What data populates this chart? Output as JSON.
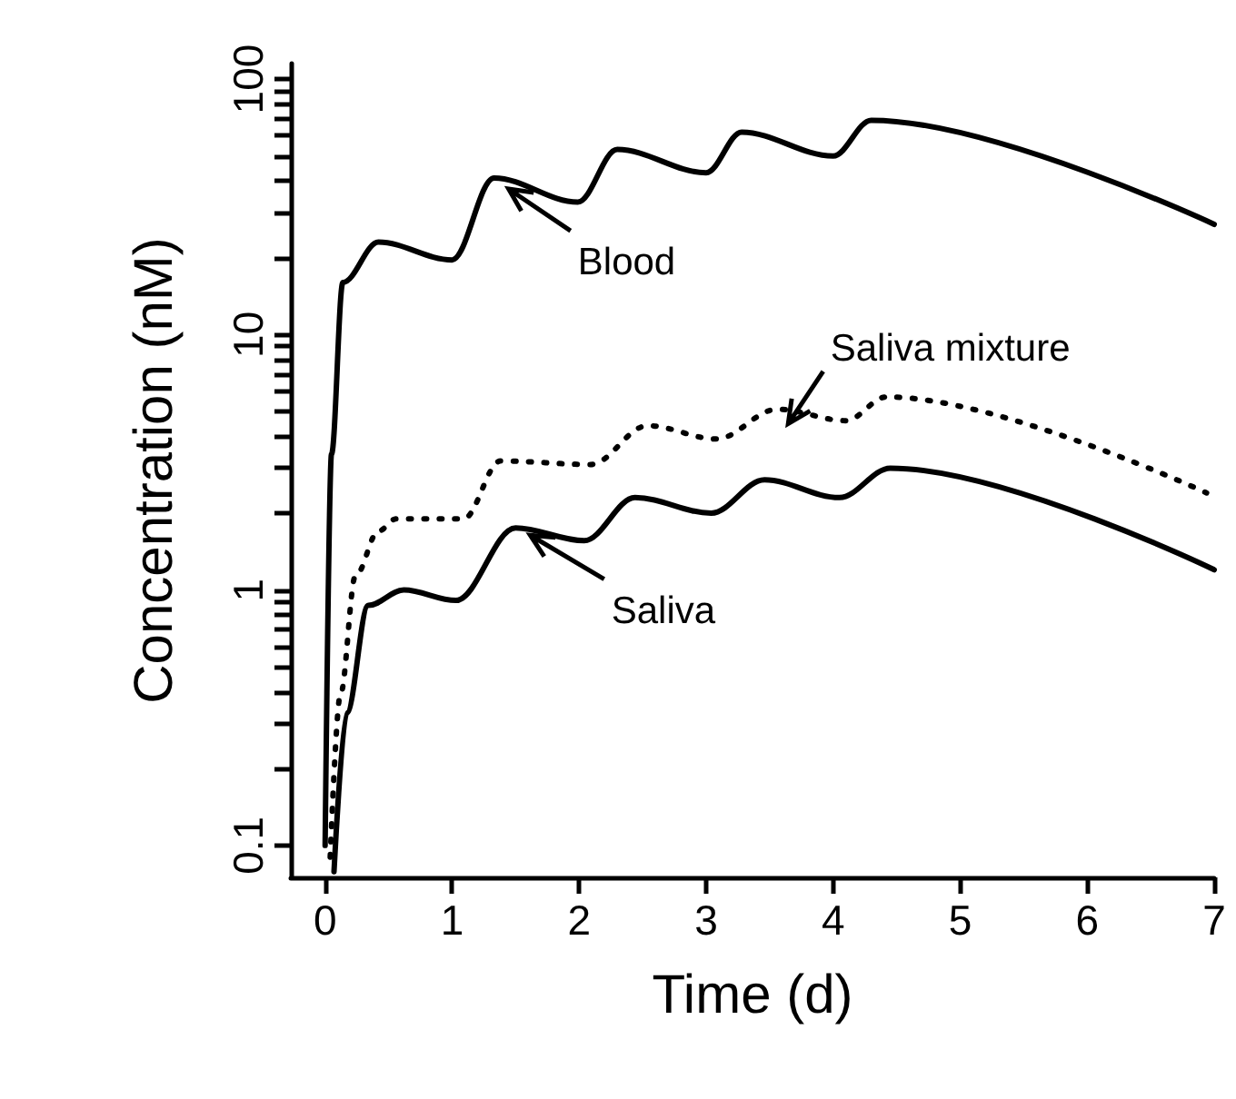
{
  "chart_data": {
    "type": "line",
    "xlabel": "Time (d)",
    "ylabel": "Concentration (nM)",
    "log": "y",
    "grid": false,
    "legend": false,
    "marker": "none",
    "xlim": [
      -0.27,
      7
    ],
    "xticks": [
      0,
      1,
      2,
      3,
      4,
      5,
      6,
      7
    ],
    "ylim": [
      0.075,
      115
    ],
    "yticks": [
      {
        "value": 0.1,
        "label": "0.1"
      },
      {
        "value": 0.2,
        "label": null
      },
      {
        "value": 0.3,
        "label": null
      },
      {
        "value": 0.4,
        "label": null
      },
      {
        "value": 0.5,
        "label": null
      },
      {
        "value": 0.6,
        "label": null
      },
      {
        "value": 0.7,
        "label": null
      },
      {
        "value": 0.8,
        "label": null
      },
      {
        "value": 0.9,
        "label": null
      },
      {
        "value": 1,
        "label": "1"
      },
      {
        "value": 2,
        "label": null
      },
      {
        "value": 3,
        "label": null
      },
      {
        "value": 4,
        "label": null
      },
      {
        "value": 5,
        "label": null
      },
      {
        "value": 6,
        "label": null
      },
      {
        "value": 7,
        "label": null
      },
      {
        "value": 8,
        "label": null
      },
      {
        "value": 9,
        "label": null
      },
      {
        "value": 10,
        "label": "10"
      },
      {
        "value": 20,
        "label": null
      },
      {
        "value": 30,
        "label": null
      },
      {
        "value": 40,
        "label": null
      },
      {
        "value": 50,
        "label": null
      },
      {
        "value": 60,
        "label": null
      },
      {
        "value": 70,
        "label": null
      },
      {
        "value": 80,
        "label": null
      },
      {
        "value": 90,
        "label": null
      },
      {
        "value": 100,
        "label": "100"
      }
    ],
    "series": [
      {
        "name": "Blood",
        "color": "#000000",
        "line_style": "solid",
        "x": [
          0,
          0.05,
          0.14,
          0.42,
          1.0,
          1.33,
          1.99,
          2.3,
          3.0,
          3.28,
          4.0,
          4.3,
          7.0
        ],
        "values": [
          0.1,
          3.4,
          16,
          23,
          19.6,
          41,
          33,
          53,
          43,
          62,
          50,
          69,
          27
        ]
      },
      {
        "name": "Saliva",
        "color": "#000000",
        "line_style": "solid",
        "x": [
          0.07,
          0.17,
          0.34,
          0.62,
          1.03,
          1.5,
          2.04,
          2.44,
          3.04,
          3.46,
          4.05,
          4.45,
          7.0
        ],
        "values": [
          0.079,
          0.33,
          0.87,
          1.0,
          0.91,
          1.75,
          1.56,
          2.3,
          2.0,
          2.7,
          2.3,
          3.0,
          1.2
        ]
      },
      {
        "name": "Saliva mixture",
        "color": "#000000",
        "line_style": "dotted",
        "x": [
          0.04,
          0.12,
          0.24,
          0.42,
          0.56,
          1.09,
          1.38,
          2.09,
          2.54,
          3.08,
          3.56,
          4.1,
          4.42,
          6.94
        ],
        "values": [
          0.09,
          0.39,
          1.14,
          1.7,
          1.9,
          1.9,
          3.2,
          3.1,
          4.4,
          3.9,
          5.1,
          4.6,
          5.7,
          2.4
        ]
      }
    ]
  }
}
